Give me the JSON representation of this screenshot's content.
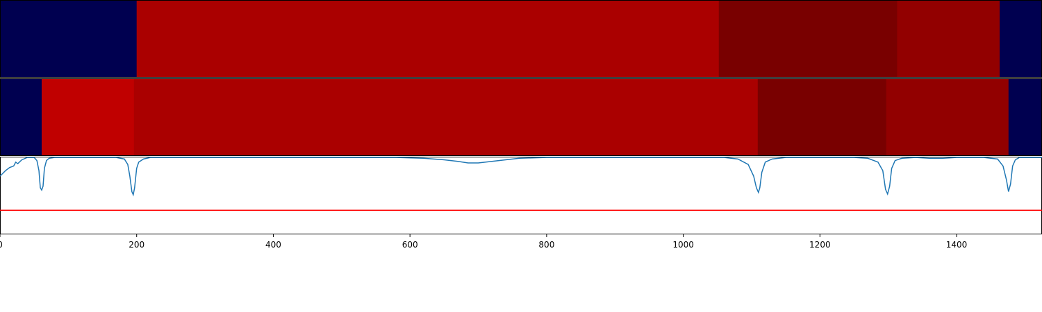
{
  "chart_data": [
    {
      "type": "heatmap",
      "title": "",
      "xlim": [
        0,
        1525
      ],
      "segments": [
        {
          "start": 0,
          "end": 200,
          "color": "#000050"
        },
        {
          "start": 200,
          "end": 1052,
          "color": "#aa0000"
        },
        {
          "start": 1052,
          "end": 1313,
          "color": "#790000"
        },
        {
          "start": 1313,
          "end": 1463,
          "color": "#920000"
        },
        {
          "start": 1463,
          "end": 1525,
          "color": "#000050"
        }
      ]
    },
    {
      "type": "heatmap",
      "title": "",
      "xlim": [
        0,
        1525
      ],
      "segments": [
        {
          "start": 0,
          "end": 61,
          "color": "#000050"
        },
        {
          "start": 61,
          "end": 196,
          "color": "#c00000"
        },
        {
          "start": 196,
          "end": 1109,
          "color": "#aa0000"
        },
        {
          "start": 1109,
          "end": 1297,
          "color": "#790000"
        },
        {
          "start": 1297,
          "end": 1476,
          "color": "#920000"
        },
        {
          "start": 1476,
          "end": 1525,
          "color": "#000050"
        }
      ]
    },
    {
      "type": "line",
      "title": "",
      "xlabel": "",
      "ylabel": "",
      "xlim": [
        0,
        1525
      ],
      "ylim": [
        0,
        1
      ],
      "xticks": [
        0,
        200,
        400,
        600,
        800,
        1000,
        1200,
        1400
      ],
      "threshold": {
        "y": 0.31,
        "color": "#ff0000"
      },
      "line_color": "#1f77b4",
      "x": [
        0,
        8,
        14,
        20,
        23,
        26,
        32,
        40,
        50,
        54,
        57,
        59,
        61,
        63,
        65,
        68,
        72,
        80,
        120,
        170,
        182,
        187,
        190,
        193,
        195,
        197,
        200,
        203,
        210,
        220,
        300,
        500,
        580,
        620,
        650,
        670,
        685,
        700,
        720,
        740,
        760,
        800,
        900,
        1000,
        1060,
        1080,
        1095,
        1103,
        1107,
        1110,
        1112,
        1115,
        1120,
        1130,
        1150,
        1200,
        1250,
        1270,
        1285,
        1292,
        1296,
        1299,
        1302,
        1305,
        1310,
        1320,
        1340,
        1360,
        1380,
        1400,
        1420,
        1440,
        1460,
        1468,
        1473,
        1476,
        1479,
        1482,
        1486,
        1492,
        1500,
        1525
      ],
      "y": [
        0.75,
        0.82,
        0.86,
        0.88,
        0.93,
        0.91,
        0.96,
        0.99,
        0.99,
        0.95,
        0.82,
        0.6,
        0.57,
        0.62,
        0.85,
        0.95,
        0.98,
        0.99,
        0.99,
        0.99,
        0.97,
        0.9,
        0.75,
        0.55,
        0.51,
        0.6,
        0.85,
        0.93,
        0.97,
        0.99,
        0.99,
        0.99,
        0.99,
        0.98,
        0.96,
        0.94,
        0.92,
        0.92,
        0.94,
        0.96,
        0.98,
        0.99,
        0.99,
        0.99,
        0.99,
        0.97,
        0.9,
        0.75,
        0.6,
        0.54,
        0.6,
        0.8,
        0.93,
        0.97,
        0.99,
        0.99,
        0.99,
        0.98,
        0.93,
        0.82,
        0.58,
        0.52,
        0.62,
        0.85,
        0.95,
        0.98,
        0.99,
        0.98,
        0.98,
        0.99,
        0.99,
        0.99,
        0.97,
        0.88,
        0.7,
        0.55,
        0.65,
        0.88,
        0.96,
        0.99,
        0.99,
        0.99
      ]
    }
  ]
}
